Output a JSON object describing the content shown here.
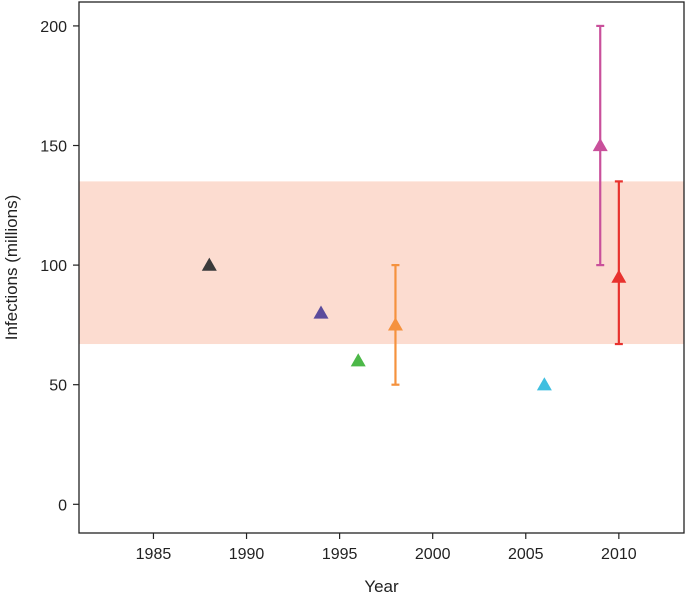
{
  "chart_data": {
    "type": "scatter",
    "title": "",
    "xlabel": "Year",
    "ylabel": "Infections (millions)",
    "xlim": [
      1981,
      2013.5
    ],
    "ylim": [
      -12,
      210
    ],
    "xticks": [
      1985,
      1990,
      1995,
      2000,
      2005,
      2010
    ],
    "yticks": [
      0,
      50,
      100,
      150,
      200
    ],
    "grid": false,
    "band": {
      "y_low": 67,
      "y_high": 135,
      "color": "#fcdcd0"
    },
    "points": [
      {
        "x": 1988,
        "y": 100,
        "color": "#3a3a3a"
      },
      {
        "x": 1994,
        "y": 80,
        "color": "#5b4b9c"
      },
      {
        "x": 1996,
        "y": 60,
        "color": "#4cb848"
      },
      {
        "x": 1998,
        "y": 75,
        "y_low": 50,
        "y_high": 100,
        "color": "#f5923e"
      },
      {
        "x": 2006,
        "y": 50,
        "color": "#40bfe0"
      },
      {
        "x": 2009,
        "y": 150,
        "y_low": 100,
        "y_high": 200,
        "color": "#c9509b"
      },
      {
        "x": 2010,
        "y": 95,
        "y_low": 67,
        "y_high": 135,
        "color": "#e8322e"
      }
    ]
  }
}
